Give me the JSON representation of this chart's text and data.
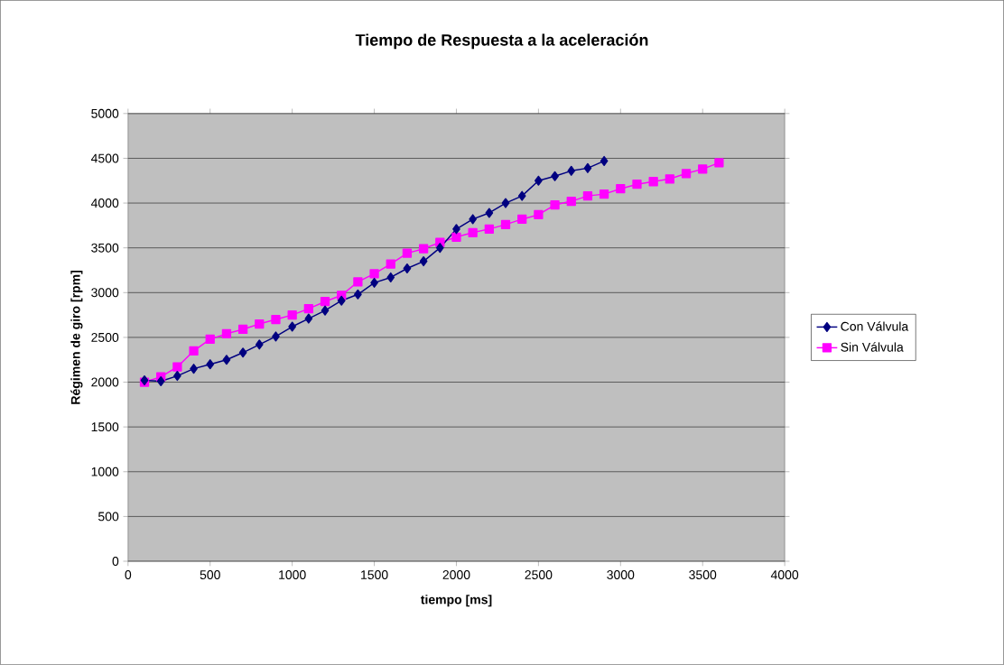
{
  "chart_data": {
    "type": "line",
    "title": "Tiempo de Respuesta a la aceleración",
    "xlabel": "tiempo [ms]",
    "ylabel": "Régimen de giro [rpm]",
    "xlim": [
      0,
      4000
    ],
    "xticks": [
      0,
      500,
      1000,
      1500,
      2000,
      2500,
      3000,
      3500,
      4000
    ],
    "ylim": [
      0,
      5000
    ],
    "yticks": [
      0,
      500,
      1000,
      1500,
      2000,
      2500,
      3000,
      3500,
      4000,
      4500,
      5000
    ],
    "grid": "y",
    "legend": "right",
    "line_style": "solid",
    "series": [
      {
        "name": "Con Válvula",
        "color": "#000080",
        "marker": "diamond",
        "x": [
          100,
          200,
          300,
          400,
          500,
          600,
          700,
          800,
          900,
          1000,
          1100,
          1200,
          1300,
          1400,
          1500,
          1600,
          1700,
          1800,
          1900,
          2000,
          2100,
          2200,
          2300,
          2400,
          2500,
          2600,
          2700,
          2800,
          2900
        ],
        "values": [
          2020,
          2010,
          2070,
          2150,
          2200,
          2250,
          2330,
          2420,
          2510,
          2620,
          2710,
          2800,
          2910,
          2980,
          3110,
          3170,
          3270,
          3350,
          3500,
          3710,
          3820,
          3890,
          4000,
          4080,
          4250,
          4300,
          4360,
          4390,
          4470
        ]
      },
      {
        "name": "Sin Válvula",
        "color": "#ff00ff",
        "marker": "square",
        "x": [
          100,
          200,
          300,
          400,
          500,
          600,
          700,
          800,
          900,
          1000,
          1100,
          1200,
          1300,
          1400,
          1500,
          1600,
          1700,
          1800,
          1900,
          2000,
          2100,
          2200,
          2300,
          2400,
          2500,
          2600,
          2700,
          2800,
          2900,
          3000,
          3100,
          3200,
          3300,
          3400,
          3500,
          3600
        ],
        "values": [
          2000,
          2060,
          2170,
          2350,
          2480,
          2540,
          2590,
          2650,
          2700,
          2750,
          2820,
          2900,
          2970,
          3120,
          3210,
          3320,
          3440,
          3490,
          3560,
          3620,
          3670,
          3710,
          3760,
          3820,
          3870,
          3980,
          4020,
          4080,
          4100,
          4160,
          4210,
          4240,
          4270,
          4330,
          4380,
          4450
        ]
      }
    ]
  }
}
